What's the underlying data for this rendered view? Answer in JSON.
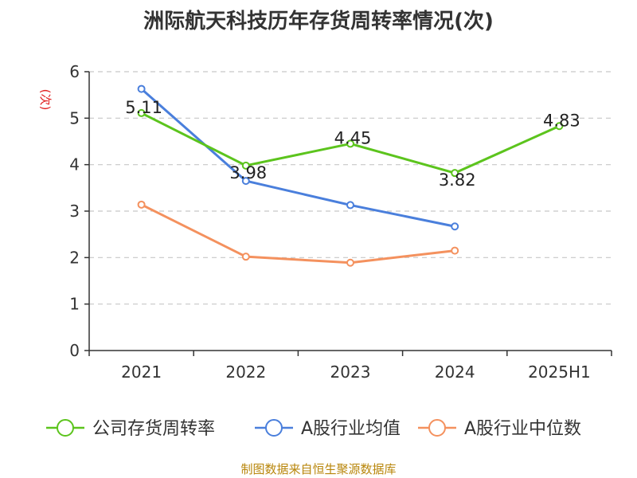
{
  "chart_data": {
    "type": "line",
    "title": "洲际航天科技历年存货周转率情况(次)",
    "ylabel": "(次)",
    "xlabel": "",
    "categories": [
      "2021",
      "2022",
      "2023",
      "2024",
      "2025H1"
    ],
    "ylim": [
      0,
      6
    ],
    "yticks": [
      "0",
      "1",
      "2",
      "3",
      "4",
      "5",
      "6"
    ],
    "grid": true,
    "legend_position": "bottom",
    "series": [
      {
        "name": "公司存货周转率",
        "color": "#5cc41d",
        "values": [
          5.11,
          3.98,
          4.45,
          3.82,
          4.83
        ],
        "labels": [
          "5.11",
          "3.98",
          "4.45",
          "3.82",
          "4.83"
        ]
      },
      {
        "name": "A股行业均值",
        "color": "#4a7fdc",
        "values": [
          5.63,
          3.65,
          3.13,
          2.67,
          null
        ]
      },
      {
        "name": "A股行业中位数",
        "color": "#f4915e",
        "values": [
          3.14,
          2.02,
          1.89,
          2.15,
          null
        ]
      }
    ]
  },
  "source": "制图数据来自恒生聚源数据库"
}
